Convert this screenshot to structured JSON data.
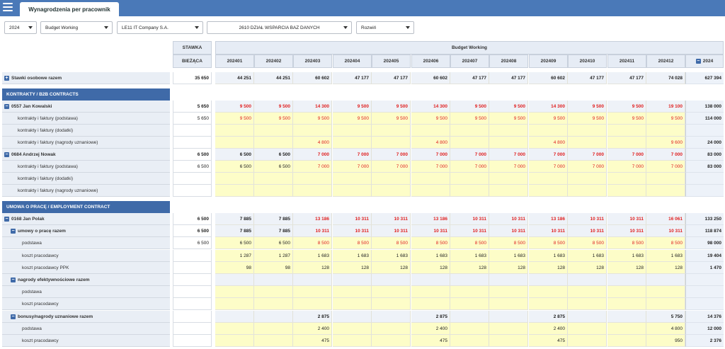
{
  "app": {
    "tab_title": "Wynagrodzenia per pracownik"
  },
  "filters": {
    "year": "2024",
    "budget": "Budget Working",
    "company": "LE11 IT Company S.A.",
    "department": "2610 DZIAŁ WSPARCIA BAZ DANYCH",
    "expand": "Rozwiń"
  },
  "header": {
    "stawka_line1": "STAWKA",
    "stawka_line2": "BIEŻĄCA",
    "budget_group": "Budget Working",
    "periods": [
      "202401",
      "202402",
      "202403",
      "202404",
      "202405",
      "202406",
      "202407",
      "202408",
      "202409",
      "202410",
      "202411",
      "202412"
    ],
    "year_total": "2024",
    "collapse_symbol": "−"
  },
  "rows": [
    {
      "label": "Stawki osobowe razem",
      "icon": "+",
      "stawka": "35 650",
      "vals": [
        "44 251",
        "44 251",
        "60 602",
        "47 177",
        "47 177",
        "60 602",
        "47 177",
        "47 177",
        "60 602",
        "47 177",
        "47 177",
        "74 028"
      ],
      "total": "627 394",
      "bold": true,
      "bg": "white"
    },
    {
      "section": "KONTRAKTY / B2B CONTRACTS"
    },
    {
      "label": "0557 Jan Kowalski",
      "icon": "−",
      "stawka": "5 650",
      "vals": [
        "9 500",
        "9 500",
        "14 300",
        "9 500",
        "9 500",
        "14 300",
        "9 500",
        "9 500",
        "14 300",
        "9 500",
        "9 500",
        "19 100"
      ],
      "total": "138 000",
      "bold": true,
      "bg": "white",
      "red": true
    },
    {
      "label": "kontrakty i faktury (podstawa)",
      "stawka": "5 650",
      "vals": [
        "9 500",
        "9 500",
        "9 500",
        "9 500",
        "9 500",
        "9 500",
        "9 500",
        "9 500",
        "9 500",
        "9 500",
        "9 500",
        "9 500"
      ],
      "total": "114 000",
      "bg": "yellow",
      "red": true,
      "indent": 1
    },
    {
      "label": "kontrakty i faktury (dodatki)",
      "stawka": "",
      "vals": [
        "",
        "",
        "",
        "",
        "",
        "",
        "",
        "",
        "",
        "",
        "",
        ""
      ],
      "total": "",
      "bg": "yellow",
      "indent": 1
    },
    {
      "label": "kontrakty i faktury (nagrody uznaniowe)",
      "stawka": "",
      "vals": [
        "",
        "",
        "4 800",
        "",
        "",
        "4 800",
        "",
        "",
        "4 800",
        "",
        "",
        "9 600"
      ],
      "total": "24 000",
      "bg": "yellow",
      "red": true,
      "indent": 1
    },
    {
      "label": "0684 Andrzej Nowak",
      "icon": "−",
      "stawka": "6 500",
      "vals": [
        "6 500",
        "6 500",
        "7 000",
        "7 000",
        "7 000",
        "7 000",
        "7 000",
        "7 000",
        "7 000",
        "7 000",
        "7 000",
        "7 000"
      ],
      "total": "83 000",
      "bold": true,
      "bg": "white",
      "redFrom": 2
    },
    {
      "label": "kontrakty i faktury (podstawa)",
      "stawka": "6 500",
      "vals": [
        "6 500",
        "6 500",
        "7 000",
        "7 000",
        "7 000",
        "7 000",
        "7 000",
        "7 000",
        "7 000",
        "7 000",
        "7 000",
        "7 000"
      ],
      "total": "83 000",
      "bg": "yellow",
      "redFrom": 2,
      "indent": 1
    },
    {
      "label": "kontrakty i faktury (dodatki)",
      "stawka": "",
      "vals": [
        "",
        "",
        "",
        "",
        "",
        "",
        "",
        "",
        "",
        "",
        "",
        ""
      ],
      "total": "",
      "bg": "yellow",
      "indent": 1
    },
    {
      "label": "kontrakty i faktury (nagrody uznaniowe)",
      "stawka": "",
      "vals": [
        "",
        "",
        "",
        "",
        "",
        "",
        "",
        "",
        "",
        "",
        "",
        ""
      ],
      "total": "",
      "bg": "yellow",
      "indent": 1
    },
    {
      "section": "UMOWA O PRACĘ / EMPLOYMENT CONTRACT"
    },
    {
      "label": "0168 Jan Polak",
      "icon": "−",
      "stawka": "6 500",
      "vals": [
        "7 885",
        "7 885",
        "13 186",
        "10 311",
        "10 311",
        "13 186",
        "10 311",
        "10 311",
        "13 186",
        "10 311",
        "10 311",
        "16 061"
      ],
      "total": "133 250",
      "bold": true,
      "bg": "white",
      "redFrom": 2
    },
    {
      "label": "umowy o pracę razem",
      "icon": "−",
      "stawka": "6 500",
      "vals": [
        "7 885",
        "7 885",
        "10 311",
        "10 311",
        "10 311",
        "10 311",
        "10 311",
        "10 311",
        "10 311",
        "10 311",
        "10 311",
        "10 311"
      ],
      "total": "118 874",
      "bold": true,
      "bg": "white",
      "redFrom": 2,
      "indent": 1
    },
    {
      "label": "podstawa",
      "stawka": "6 500",
      "vals": [
        "6 500",
        "6 500",
        "8 500",
        "8 500",
        "8 500",
        "8 500",
        "8 500",
        "8 500",
        "8 500",
        "8 500",
        "8 500",
        "8 500"
      ],
      "total": "98 000",
      "bg": "yellow",
      "redFrom": 2,
      "indent": 2
    },
    {
      "label": "koszt pracodawcy",
      "stawka": "",
      "vals": [
        "1 287",
        "1 287",
        "1 683",
        "1 683",
        "1 683",
        "1 683",
        "1 683",
        "1 683",
        "1 683",
        "1 683",
        "1 683",
        "1 683"
      ],
      "total": "19 404",
      "bg": "yellow",
      "indent": 2
    },
    {
      "label": "koszt pracodawcy PPK",
      "stawka": "",
      "vals": [
        "98",
        "98",
        "128",
        "128",
        "128",
        "128",
        "128",
        "128",
        "128",
        "128",
        "128",
        "128"
      ],
      "total": "1 470",
      "bg": "yellow",
      "indent": 2
    },
    {
      "label": "nagrody efektywnościowe razem",
      "icon": "−",
      "stawka": "",
      "vals": [
        "",
        "",
        "",
        "",
        "",
        "",
        "",
        "",
        "",
        "",
        "",
        ""
      ],
      "total": "",
      "bold": true,
      "bg": "white",
      "indent": 1
    },
    {
      "label": "podstawa",
      "stawka": "",
      "vals": [
        "",
        "",
        "",
        "",
        "",
        "",
        "",
        "",
        "",
        "",
        "",
        ""
      ],
      "total": "",
      "bg": "yellow",
      "indent": 2
    },
    {
      "label": "koszt pracodawcy",
      "stawka": "",
      "vals": [
        "",
        "",
        "",
        "",
        "",
        "",
        "",
        "",
        "",
        "",
        "",
        ""
      ],
      "total": "",
      "bg": "yellow",
      "indent": 2
    },
    {
      "label": "bonusy/nagrody uznaniowe razem",
      "icon": "−",
      "stawka": "",
      "vals": [
        "",
        "",
        "2 875",
        "",
        "",
        "2 875",
        "",
        "",
        "2 875",
        "",
        "",
        "5 750"
      ],
      "total": "14 376",
      "bold": true,
      "bg": "white",
      "indent": 1
    },
    {
      "label": "podstawa",
      "stawka": "",
      "vals": [
        "",
        "",
        "2 400",
        "",
        "",
        "2 400",
        "",
        "",
        "2 400",
        "",
        "",
        "4 800"
      ],
      "total": "12 000",
      "bg": "yellow",
      "indent": 2
    },
    {
      "label": "koszt pracodawcy",
      "stawka": "",
      "vals": [
        "",
        "",
        "475",
        "",
        "",
        "475",
        "",
        "",
        "475",
        "",
        "",
        "950"
      ],
      "total": "2 376",
      "bg": "yellow",
      "indent": 2
    }
  ]
}
